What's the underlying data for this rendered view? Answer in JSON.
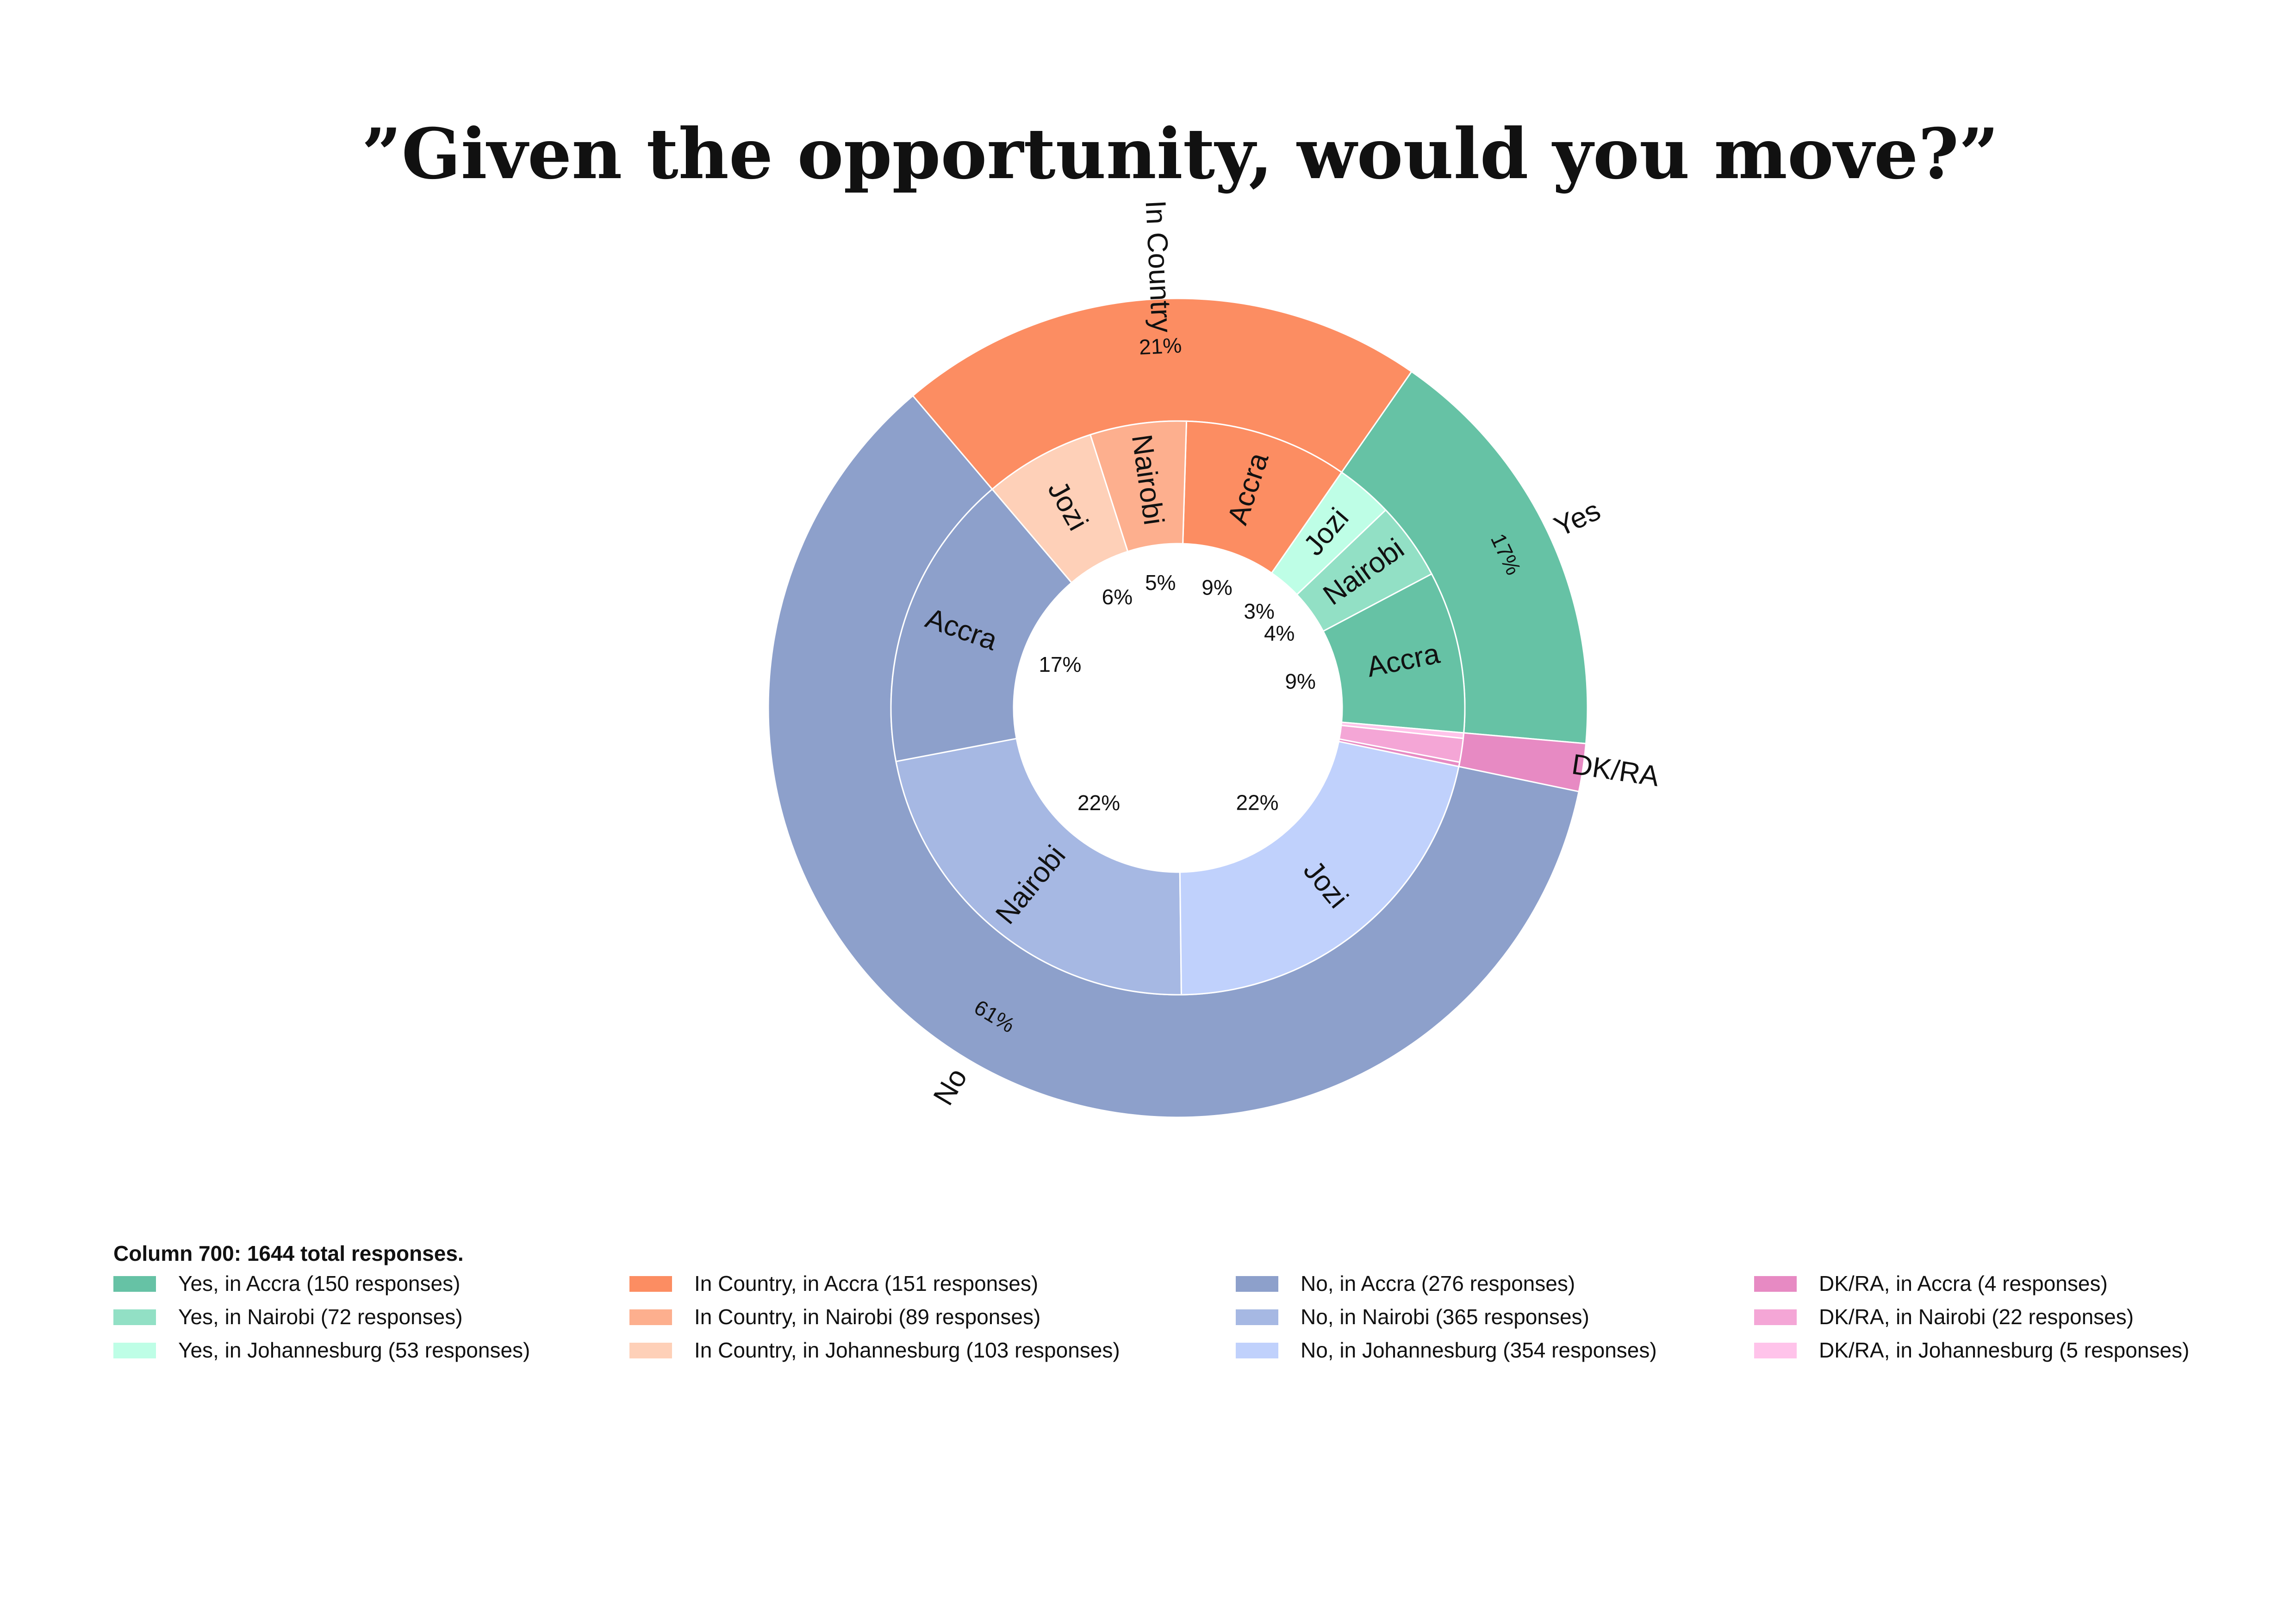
{
  "chart_data": {
    "type": "pie",
    "subtype": "nested-donut",
    "title": "”Given the opportunity, would you move?”",
    "legend_caption": "Column 700: 1644 total responses.",
    "legend_position": "bottom",
    "outer_ring": [
      {
        "label": "Yes",
        "value": 275,
        "pct_label": "17%",
        "color": "#66c2a5"
      },
      {
        "label": "In Country",
        "value": 343,
        "pct_label": "21%",
        "color": "#fc8d62"
      },
      {
        "label": "No",
        "value": 995,
        "pct_label": "61%",
        "color": "#8da0cb"
      },
      {
        "label": "DK/RA",
        "value": 31,
        "pct_label": "",
        "color": "#e78ac3"
      }
    ],
    "inner_ring": [
      {
        "label": "Accra",
        "value": 150,
        "pct_label": "9%",
        "color": "#66c2a5",
        "legend": "Yes, in Accra (150 responses)"
      },
      {
        "label": "Nairobi",
        "value": 72,
        "pct_label": "4%",
        "color": "#92e0c5",
        "legend": "Yes, in Nairobi (72 responses)"
      },
      {
        "label": "Jozi",
        "value": 53,
        "pct_label": "3%",
        "color": "#befee6",
        "legend": "Yes, in Johannesburg (53 responses)"
      },
      {
        "label": "Accra",
        "value": 151,
        "pct_label": "9%",
        "color": "#fc8d62",
        "legend": "In Country, in Accra (151 responses)"
      },
      {
        "label": "Nairobi",
        "value": 89,
        "pct_label": "5%",
        "color": "#fdaf8e",
        "legend": "In Country, in Nairobi (89 responses)"
      },
      {
        "label": "Jozi",
        "value": 103,
        "pct_label": "6%",
        "color": "#fed0b8",
        "legend": "In Country, in Johannesburg (103 responses)"
      },
      {
        "label": "Accra",
        "value": 276,
        "pct_label": "17%",
        "color": "#8da0cb",
        "legend": "No, in Accra (276 responses)"
      },
      {
        "label": "Nairobi",
        "value": 365,
        "pct_label": "22%",
        "color": "#a6b8e3",
        "legend": "No, in Nairobi (365 responses)"
      },
      {
        "label": "Jozi",
        "value": 354,
        "pct_label": "22%",
        "color": "#c0d1fc",
        "legend": "No, in Johannesburg (354 responses)"
      },
      {
        "label": "",
        "value": 4,
        "pct_label": "",
        "color": "#e78ac3",
        "legend": "DK/RA, in Accra (4 responses)"
      },
      {
        "label": "",
        "value": 22,
        "pct_label": "",
        "color": "#f4a6d6",
        "legend": "DK/RA, in Nairobi (22 responses)"
      },
      {
        "label": "",
        "value": 5,
        "pct_label": "",
        "color": "#ffc3ea",
        "legend": "DK/RA, in Johannesburg (5 responses)"
      }
    ]
  }
}
